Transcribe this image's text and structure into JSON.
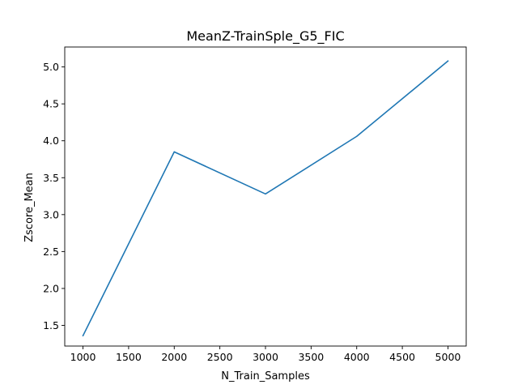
{
  "chart_data": {
    "type": "line",
    "title": "MeanZ-TrainSple_G5_FIC",
    "xlabel": "N_Train_Samples",
    "ylabel": "Zscore_Mean",
    "x": [
      1000,
      2000,
      3000,
      4000,
      5000
    ],
    "series": [
      {
        "values": [
          1.36,
          3.85,
          3.28,
          4.06,
          5.08
        ],
        "color": "#1f77b4"
      }
    ],
    "xlim": [
      800,
      5200
    ],
    "ylim": [
      1.22,
      5.27
    ],
    "xticks": [
      1000,
      1500,
      2000,
      2500,
      3000,
      3500,
      4000,
      4500,
      5000
    ],
    "xtick_labels": [
      "1000",
      "1500",
      "2000",
      "2500",
      "3000",
      "3500",
      "4000",
      "4500",
      "5000"
    ],
    "yticks": [
      1.5,
      2.0,
      2.5,
      3.0,
      3.5,
      4.0,
      4.5,
      5.0
    ],
    "ytick_labels": [
      "1.5",
      "2.0",
      "2.5",
      "3.0",
      "3.5",
      "4.0",
      "4.5",
      "5.0"
    ],
    "grid": false,
    "legend": false
  }
}
